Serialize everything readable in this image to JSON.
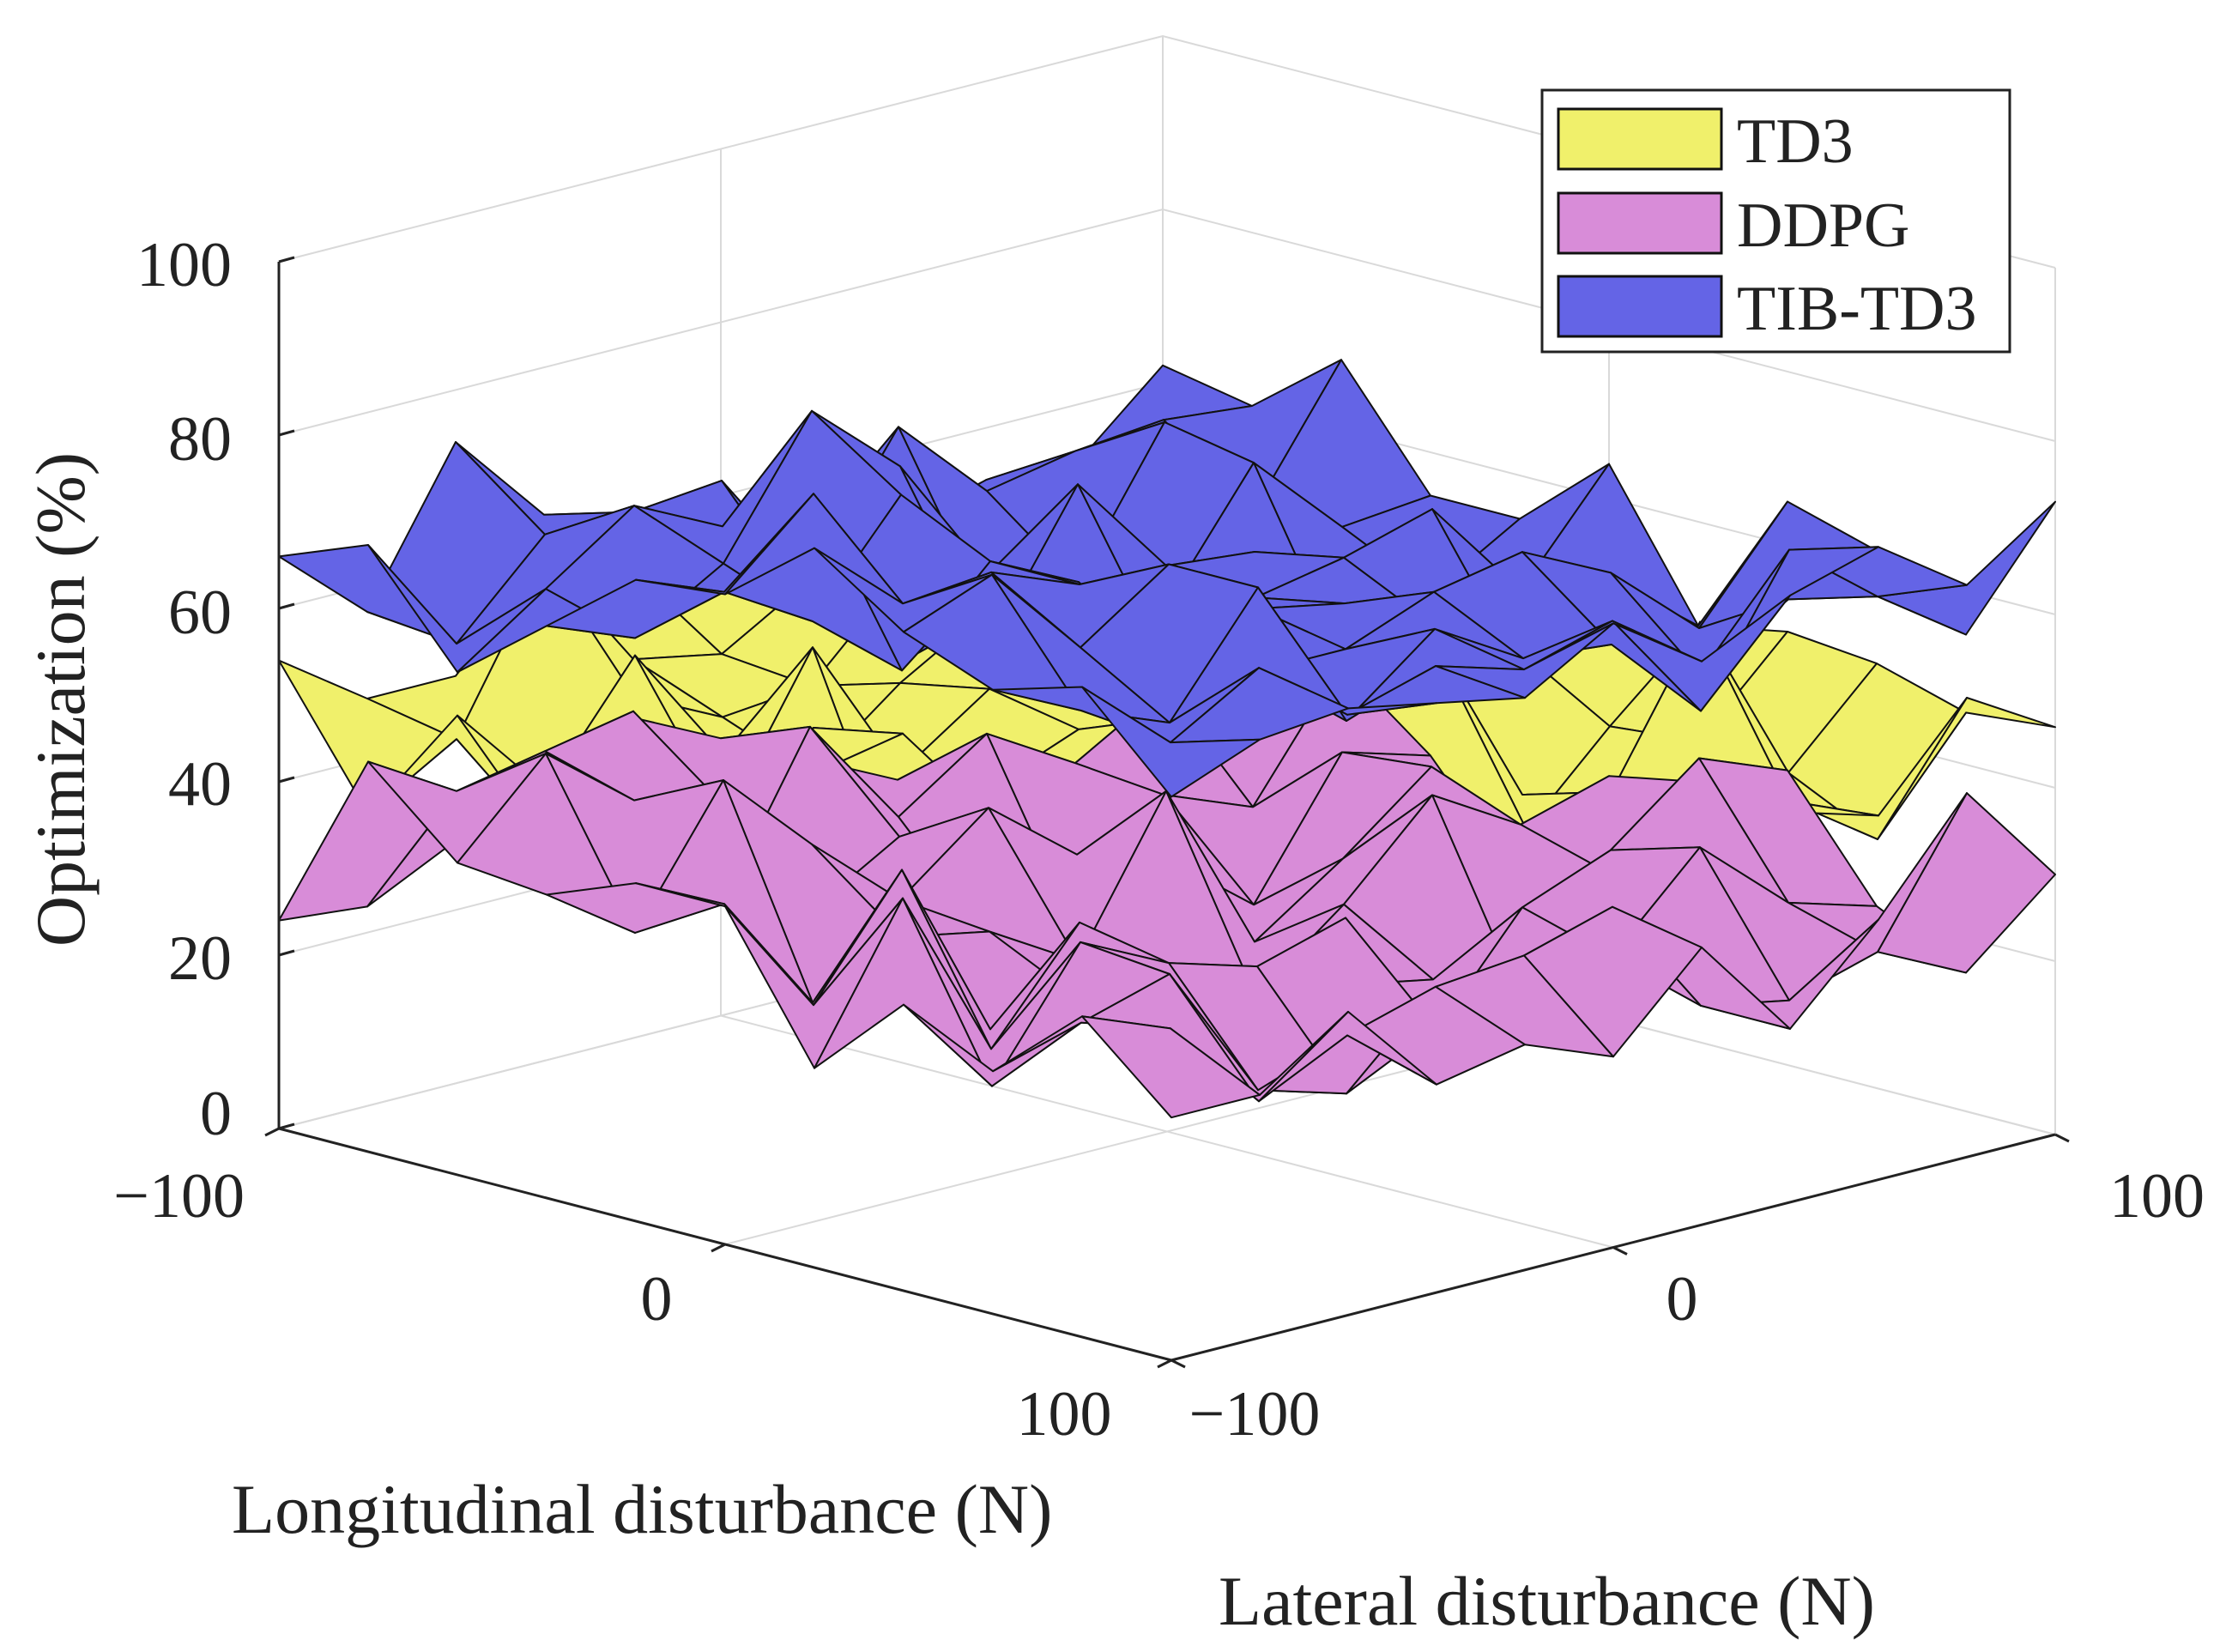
{
  "chart_data": {
    "type": "surface",
    "title": "",
    "xlabel": "Longitudinal disturbance (N)",
    "ylabel": "Lateral disturbance (N)",
    "zlabel": "Optimization (%)",
    "xlim": [
      -100,
      100
    ],
    "ylim": [
      -100,
      100
    ],
    "zlim": [
      0,
      100
    ],
    "x_ticks": [
      "−100",
      "0",
      "100"
    ],
    "y_ticks": [
      "−100",
      "0",
      "100"
    ],
    "z_ticks": [
      "0",
      "20",
      "40",
      "60",
      "80",
      "100"
    ],
    "grid": [
      -100,
      -80,
      -60,
      -40,
      -20,
      0,
      20,
      40,
      60,
      80,
      100
    ],
    "legend_position": "top-right",
    "series": [
      {
        "name": "TD3",
        "color": "#f0f06b",
        "base": 40,
        "z": [
          [
            54,
            47,
            47,
            49,
            54,
            52,
            50,
            44,
            46,
            54,
            52
          ],
          [
            39,
            45,
            63,
            49,
            47,
            53,
            47,
            50,
            36,
            52,
            49
          ],
          [
            53,
            36,
            50,
            45,
            46,
            56,
            51,
            41,
            37,
            51,
            47
          ],
          [
            47,
            60,
            46,
            41,
            49,
            55,
            35,
            42,
            35,
            51,
            33
          ],
          [
            52,
            44,
            61,
            44,
            51,
            55,
            49,
            39,
            39,
            38,
            40
          ],
          [
            39,
            57,
            36,
            45,
            49,
            30,
            58,
            32,
            48,
            45,
            53
          ],
          [
            57,
            59,
            45,
            34,
            53,
            35,
            50,
            36,
            29,
            39,
            48
          ],
          [
            38,
            52,
            45,
            39,
            30,
            53,
            59,
            39,
            28,
            40,
            50
          ],
          [
            41,
            40,
            50,
            59,
            37,
            35,
            41,
            42,
            59,
            39,
            49
          ],
          [
            50,
            43,
            55,
            44,
            51,
            42,
            38,
            46,
            41,
            34,
            46
          ],
          [
            43,
            40,
            55,
            37,
            29,
            49,
            44,
            45,
            42,
            53,
            47
          ]
        ]
      },
      {
        "name": "DDPG",
        "color": "#d88cd8",
        "base": 25,
        "z": [
          [
            24,
            23,
            28,
            32,
            37,
            32,
            27,
            22,
            19,
            16,
            14
          ],
          [
            45,
            39,
            41,
            43,
            18,
            36,
            23,
            30,
            24,
            30,
            38
          ],
          [
            36,
            46,
            38,
            35,
            20,
            26,
            12,
            10,
            23,
            19,
            33
          ],
          [
            35,
            28,
            43,
            33,
            24,
            32,
            24,
            21,
            13,
            28,
            25
          ],
          [
            39,
            34,
            20,
            25,
            23,
            17,
            34,
            14,
            21,
            29,
            13
          ],
          [
            39,
            25,
            38,
            17,
            18,
            11,
            13,
            21,
            31,
            25,
            28
          ],
          [
            23,
            40,
            20,
            32,
            19,
            18,
            17,
            15,
            10,
            22,
            30
          ],
          [
            33,
            21,
            35,
            30,
            27,
            30,
            14,
            26,
            30,
            38,
            34
          ],
          [
            28,
            31,
            34,
            18,
            15,
            20,
            23,
            23,
            33,
            24,
            21
          ],
          [
            37,
            33,
            22,
            27,
            30,
            31,
            34,
            20,
            18,
            21,
            16
          ],
          [
            28,
            28,
            35,
            24,
            26,
            22,
            32,
            20,
            30,
            42,
            30
          ]
        ]
      },
      {
        "name": "TIB-TD3",
        "color": "#6464e6",
        "base": 63,
        "z": [
          [
            66,
            57,
            74,
            63,
            50,
            53,
            53,
            51,
            54,
            53,
            62
          ],
          [
            70,
            56,
            66,
            66,
            67,
            53,
            68,
            58,
            60,
            61,
            60
          ],
          [
            58,
            65,
            72,
            67,
            55,
            46,
            49,
            50,
            66,
            53,
            68
          ],
          [
            66,
            62,
            68,
            83,
            74,
            59,
            61,
            50,
            64,
            54,
            55
          ],
          [
            74,
            70,
            64,
            76,
            56,
            72,
            60,
            59,
            44,
            49,
            55
          ],
          [
            75,
            84,
            61,
            71,
            66,
            54,
            59,
            61,
            64,
            52,
            64
          ],
          [
            83,
            74,
            75,
            71,
            59,
            63,
            61,
            56,
            48,
            56,
            48
          ],
          [
            76,
            80,
            69,
            76,
            61,
            61,
            65,
            67,
            62,
            53,
            65
          ],
          [
            72,
            67,
            63,
            76,
            58,
            66,
            60,
            59,
            53,
            59,
            62
          ],
          [
            75,
            66,
            72,
            64,
            67,
            64,
            67,
            54,
            70,
            62,
            55
          ],
          [
            65,
            69,
            70,
            68,
            66,
            72,
            65,
            70,
            73,
            66,
            73
          ]
        ]
      }
    ]
  }
}
